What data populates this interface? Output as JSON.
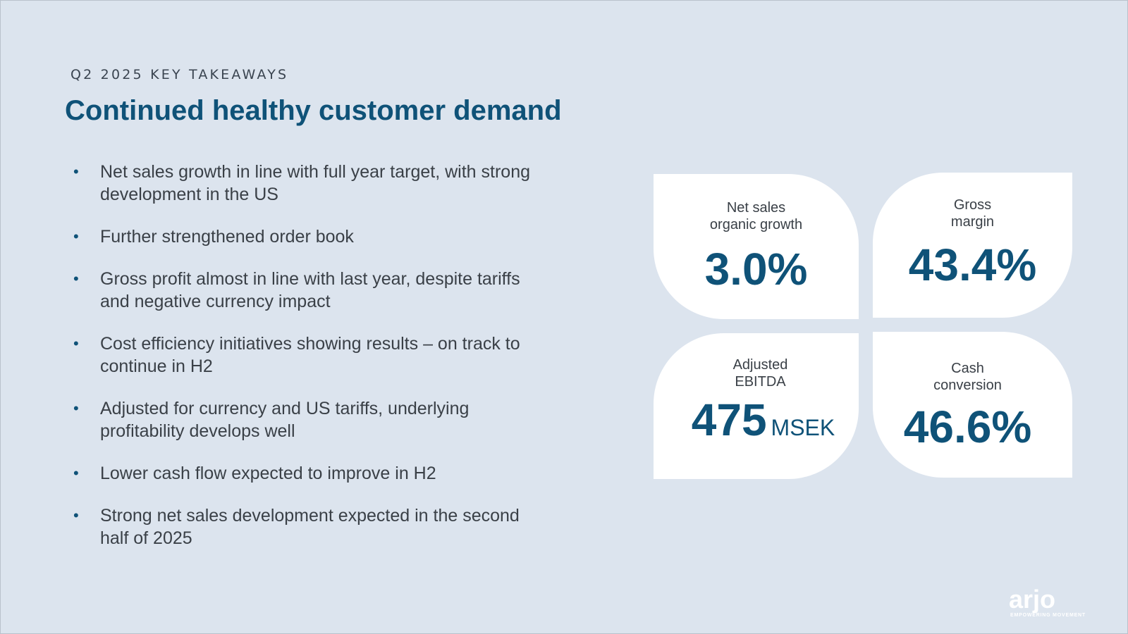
{
  "header": {
    "eyebrow": "Q2 2025 KEY TAKEAWAYS",
    "title": "Continued healthy customer demand"
  },
  "bullets": [
    {
      "line1": "Net sales growth in line with full year target, with strong",
      "line2": "development in the US"
    },
    {
      "line1": "Further strengthened order book",
      "line2": ""
    },
    {
      "line1": "Gross profit almost in line with last year, despite tariffs",
      "line2": "and negative currency impact"
    },
    {
      "line1": "Cost efficiency initiatives showing results – on track to",
      "line2": "continue in H2"
    },
    {
      "line1": "Adjusted for currency and US tariffs, underlying",
      "line2": "profitability develops well"
    },
    {
      "line1": "Lower cash flow expected to improve in H2",
      "line2": ""
    },
    {
      "line1": "Strong net sales development expected in the second",
      "line2": "half of 2025"
    }
  ],
  "bullet_symbol": "•",
  "kpis": [
    {
      "label_line1": "Net sales",
      "label_line2": "organic growth",
      "value": "3.0%",
      "unit": ""
    },
    {
      "label_line1": "Gross",
      "label_line2": "margin",
      "value": "43.4%",
      "unit": ""
    },
    {
      "label_line1": "Adjusted",
      "label_line2": "EBITDA",
      "value": "475",
      "unit": "MSEK"
    },
    {
      "label_line1": "Cash",
      "label_line2": "conversion",
      "value": "46.6%",
      "unit": ""
    }
  ],
  "logo": {
    "text": "arjo",
    "tagline": "EMPOWERING MOVEMENT"
  },
  "colors": {
    "background": "#dce4ee",
    "accent": "#0f5278",
    "card": "#ffffff",
    "body_text": "#3a4047"
  }
}
